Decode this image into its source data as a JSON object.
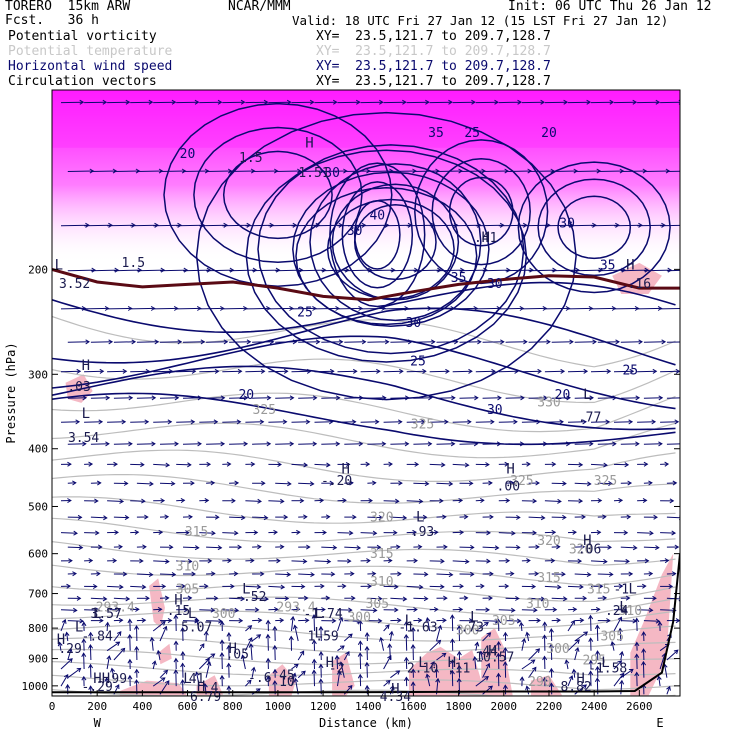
{
  "header": {
    "model": "TORERO  15km ARW",
    "center": "NCAR/MMM",
    "init": "Init: 06 UTC Thu 26 Jan 12",
    "fcst": "Fcst.   36 h",
    "valid": "Valid: 18 UTC Fri 27 Jan 12 (15 LST Fri 27 Jan 12)"
  },
  "fields": [
    {
      "name": "Potential vorticity",
      "xy": "XY=  23.5,121.7 to 209.7,128.7",
      "color": "#000000"
    },
    {
      "name": "Potential temperature",
      "xy": "XY=  23.5,121.7 to 209.7,128.7",
      "color": "#c8c8c8"
    },
    {
      "name": "Horizontal wind speed",
      "xy": "XY=  23.5,121.7 to 209.7,128.7",
      "color": "#0a0a6e"
    },
    {
      "name": "Circulation vectors",
      "xy": "XY=  23.5,121.7 to 209.7,128.7",
      "color": "#000000"
    }
  ],
  "chart_data": {
    "type": "cross-section",
    "xlabel": "Distance (km)",
    "ylabel": "Pressure (hPa)",
    "xlim": [
      0,
      2780
    ],
    "ylim": [
      1040,
      100
    ],
    "y_scale": "log",
    "x_ticks": [
      0,
      200,
      400,
      600,
      800,
      1000,
      1200,
      1400,
      1600,
      1800,
      2000,
      2200,
      2400,
      2600
    ],
    "y_ticks": [
      200,
      300,
      400,
      500,
      600,
      700,
      800,
      900,
      1000
    ],
    "endpoints": {
      "left": "W",
      "right": "E"
    },
    "colors": {
      "pv_fill_high": "#ff33ff",
      "pv_fill_low": "#f5b8c4",
      "wind_speed_contour": "#0a0a6e",
      "theta_contour": "#bdbdbd",
      "tropopause": "#5a0a14"
    },
    "theta_labels": [
      {
        "x": 280,
        "p": 750,
        "text": "293.4"
      },
      {
        "x": 1080,
        "p": 750,
        "text": "293.4"
      },
      {
        "x": 940,
        "p": 350,
        "text": "325"
      },
      {
        "x": 1640,
        "p": 370,
        "text": "325"
      },
      {
        "x": 2200,
        "p": 340,
        "text": "330"
      },
      {
        "x": 2080,
        "p": 460,
        "text": "325"
      },
      {
        "x": 2450,
        "p": 460,
        "text": "325"
      },
      {
        "x": 1460,
        "p": 530,
        "text": "320"
      },
      {
        "x": 2200,
        "p": 580,
        "text": "320"
      },
      {
        "x": 2340,
        "p": 600,
        "text": "320"
      },
      {
        "x": 640,
        "p": 560,
        "text": "315"
      },
      {
        "x": 1460,
        "p": 610,
        "text": "315"
      },
      {
        "x": 2200,
        "p": 670,
        "text": "315"
      },
      {
        "x": 2420,
        "p": 700,
        "text": "315"
      },
      {
        "x": 600,
        "p": 640,
        "text": "310"
      },
      {
        "x": 1460,
        "p": 680,
        "text": "310"
      },
      {
        "x": 2150,
        "p": 740,
        "text": "310"
      },
      {
        "x": 2560,
        "p": 760,
        "text": "310"
      },
      {
        "x": 600,
        "p": 700,
        "text": "305"
      },
      {
        "x": 1440,
        "p": 740,
        "text": "305"
      },
      {
        "x": 2000,
        "p": 790,
        "text": "305"
      },
      {
        "x": 2480,
        "p": 840,
        "text": "305"
      },
      {
        "x": 760,
        "p": 770,
        "text": "300"
      },
      {
        "x": 1360,
        "p": 780,
        "text": "300"
      },
      {
        "x": 1840,
        "p": 820,
        "text": "300"
      },
      {
        "x": 2240,
        "p": 880,
        "text": "300"
      },
      {
        "x": 2400,
        "p": 920,
        "text": "295"
      },
      {
        "x": 2160,
        "p": 1000,
        "text": "290"
      }
    ],
    "wind_labels": [
      {
        "x": 600,
        "p": 130,
        "text": "20"
      },
      {
        "x": 1240,
        "p": 140,
        "text": "30"
      },
      {
        "x": 1340,
        "p": 175,
        "text": "30"
      },
      {
        "x": 1700,
        "p": 120,
        "text": "35"
      },
      {
        "x": 1860,
        "p": 120,
        "text": "25"
      },
      {
        "x": 2200,
        "p": 120,
        "text": "20"
      },
      {
        "x": 2280,
        "p": 170,
        "text": "30"
      },
      {
        "x": 2460,
        "p": 200,
        "text": "35"
      },
      {
        "x": 1440,
        "p": 165,
        "text": "40"
      },
      {
        "x": 1800,
        "p": 210,
        "text": "35"
      },
      {
        "x": 1960,
        "p": 215,
        "text": "30"
      },
      {
        "x": 1120,
        "p": 240,
        "text": "25"
      },
      {
        "x": 1600,
        "p": 250,
        "text": "30"
      },
      {
        "x": 1620,
        "p": 290,
        "text": "25"
      },
      {
        "x": 860,
        "p": 330,
        "text": "20"
      },
      {
        "x": 1960,
        "p": 350,
        "text": "30"
      },
      {
        "x": 2260,
        "p": 330,
        "text": "20"
      },
      {
        "x": 2560,
        "p": 300,
        "text": "25"
      }
    ],
    "pv_labels": [
      {
        "x": 100,
        "p": 215,
        "text": "3.52"
      },
      {
        "x": 120,
        "p": 320,
        "text": ".03"
      },
      {
        "x": 140,
        "p": 390,
        "text": "3.54"
      },
      {
        "x": 880,
        "p": 132,
        "text": "1.5"
      },
      {
        "x": 1160,
        "p": 140,
        "text": "1.51"
      },
      {
        "x": 1260,
        "p": 460,
        "text": "-.20"
      },
      {
        "x": 1920,
        "p": 180,
        "text": ".41"
      },
      {
        "x": 2020,
        "p": 470,
        "text": ".00"
      },
      {
        "x": 1640,
        "p": 560,
        "text": ".93"
      },
      {
        "x": 2380,
        "p": 600,
        "text": ".06"
      },
      {
        "x": 2380,
        "p": 360,
        "text": ".77"
      },
      {
        "x": 2600,
        "p": 215,
        "text": ".16"
      },
      {
        "x": 360,
        "p": 198,
        "text": "1.5"
      },
      {
        "x": 200,
        "p": 1020,
        "text": "-.29"
      },
      {
        "x": 80,
        "p": 880,
        "text": ".29"
      },
      {
        "x": 200,
        "p": 840,
        "text": "-.84"
      },
      {
        "x": 240,
        "p": 770,
        "text": "3.57"
      },
      {
        "x": 560,
        "p": 760,
        "text": ".15"
      },
      {
        "x": 640,
        "p": 810,
        "text": "5.07"
      },
      {
        "x": 880,
        "p": 720,
        "text": "-.52"
      },
      {
        "x": 1200,
        "p": 770,
        "text": "-1.74"
      },
      {
        "x": 1200,
        "p": 840,
        "text": "1.59"
      },
      {
        "x": 1620,
        "p": 810,
        "text": "-1.63"
      },
      {
        "x": 1860,
        "p": 810,
        "text": ".73"
      },
      {
        "x": 820,
        "p": 900,
        "text": ".05"
      },
      {
        "x": 1260,
        "p": 950,
        "text": "-2"
      },
      {
        "x": 1640,
        "p": 950,
        "text": "2.10"
      },
      {
        "x": 1800,
        "p": 950,
        "text": ".11"
      },
      {
        "x": 1960,
        "p": 910,
        "text": "10.57"
      },
      {
        "x": 1940,
        "p": 890,
        "text": "44"
      },
      {
        "x": 2460,
        "p": 950,
        "text": "-1.58"
      },
      {
        "x": 2520,
        "p": 700,
        "text": "-1"
      },
      {
        "x": 2500,
        "p": 760,
        "text": ".24"
      },
      {
        "x": 280,
        "p": 990,
        "text": ".99"
      },
      {
        "x": 640,
        "p": 990,
        "text": "41"
      },
      {
        "x": 720,
        "p": 1025,
        "text": "4"
      },
      {
        "x": 920,
        "p": 985,
        "text": "-.6"
      },
      {
        "x": 1040,
        "p": 1000,
        "text": "10"
      },
      {
        "x": 1040,
        "p": 975,
        "text": "45"
      },
      {
        "x": 2320,
        "p": 1020,
        "text": "8.82"
      },
      {
        "x": 680,
        "p": 1060,
        "text": "6.79"
      },
      {
        "x": 1520,
        "p": 1060,
        "text": "4.34"
      }
    ],
    "hl_markers": [
      {
        "x": 1140,
        "p": 125,
        "text": "H"
      },
      {
        "x": 30,
        "p": 200,
        "text": "L"
      },
      {
        "x": 150,
        "p": 295,
        "text": "H"
      },
      {
        "x": 150,
        "p": 355,
        "text": "L"
      },
      {
        "x": 1300,
        "p": 440,
        "text": "H"
      },
      {
        "x": 2030,
        "p": 440,
        "text": "H"
      },
      {
        "x": 1630,
        "p": 530,
        "text": "L"
      },
      {
        "x": 2370,
        "p": 580,
        "text": "H"
      },
      {
        "x": 1920,
        "p": 180,
        "text": "H"
      },
      {
        "x": 2560,
        "p": 200,
        "text": "H"
      },
      {
        "x": 2370,
        "p": 330,
        "text": "L"
      },
      {
        "x": 560,
        "p": 730,
        "text": "H"
      },
      {
        "x": 860,
        "p": 700,
        "text": "L"
      },
      {
        "x": 620,
        "p": 770,
        "text": "L"
      },
      {
        "x": 200,
        "p": 770,
        "text": "L"
      },
      {
        "x": 120,
        "p": 810,
        "text": "L"
      },
      {
        "x": 40,
        "p": 850,
        "text": "H"
      },
      {
        "x": 1180,
        "p": 770,
        "text": "L"
      },
      {
        "x": 1180,
        "p": 830,
        "text": "L"
      },
      {
        "x": 1580,
        "p": 790,
        "text": "L"
      },
      {
        "x": 1870,
        "p": 780,
        "text": "L"
      },
      {
        "x": 800,
        "p": 880,
        "text": "H"
      },
      {
        "x": 1230,
        "p": 930,
        "text": "H"
      },
      {
        "x": 1640,
        "p": 930,
        "text": "L"
      },
      {
        "x": 1770,
        "p": 930,
        "text": "H"
      },
      {
        "x": 1950,
        "p": 890,
        "text": "H"
      },
      {
        "x": 2450,
        "p": 930,
        "text": "L"
      },
      {
        "x": 220,
        "p": 990,
        "text": "HH"
      },
      {
        "x": 600,
        "p": 990,
        "text": "L"
      },
      {
        "x": 660,
        "p": 1020,
        "text": "H"
      },
      {
        "x": 1520,
        "p": 1030,
        "text": "H"
      },
      {
        "x": 2340,
        "p": 990,
        "text": "H"
      },
      {
        "x": 2570,
        "p": 700,
        "text": "L"
      },
      {
        "x": 2530,
        "p": 750,
        "text": "L"
      }
    ],
    "tropopause_pv": [
      [
        0,
        200
      ],
      [
        200,
        210
      ],
      [
        400,
        214
      ],
      [
        600,
        212
      ],
      [
        800,
        210
      ],
      [
        1000,
        215
      ],
      [
        1200,
        222
      ],
      [
        1400,
        225
      ],
      [
        1600,
        218
      ],
      [
        1800,
        212
      ],
      [
        2000,
        208
      ],
      [
        2200,
        205
      ],
      [
        2400,
        206
      ],
      [
        2600,
        215
      ],
      [
        2780,
        215
      ]
    ],
    "ground_line": [
      [
        0,
        1025
      ],
      [
        400,
        1025
      ],
      [
        800,
        1025
      ],
      [
        1200,
        1025
      ],
      [
        1600,
        1024
      ],
      [
        2000,
        1022
      ],
      [
        2400,
        1022
      ],
      [
        2580,
        1020
      ],
      [
        2700,
        950
      ],
      [
        2750,
        780
      ],
      [
        2780,
        600
      ]
    ]
  }
}
